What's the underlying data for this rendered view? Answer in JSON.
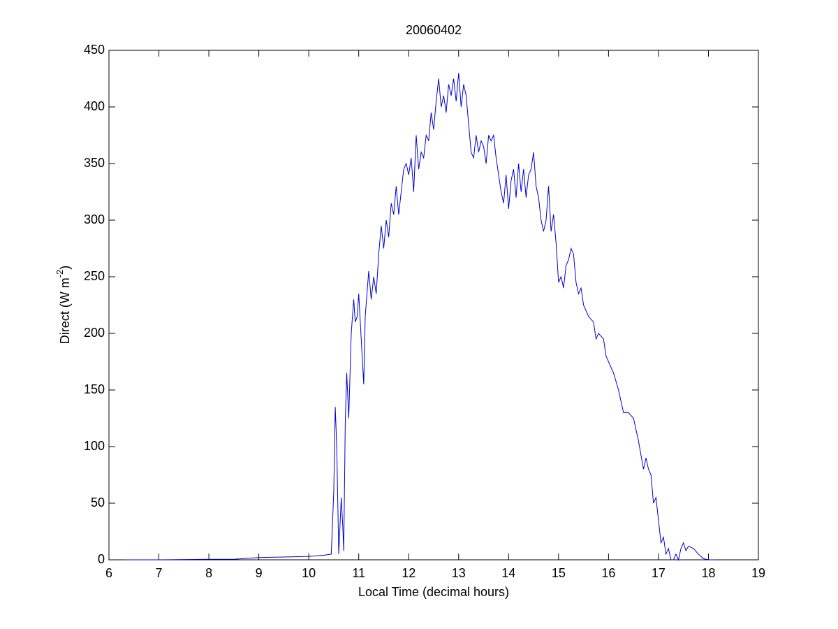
{
  "chart_data": {
    "type": "line",
    "title": "20060402",
    "x_label": "Local Time (decimal hours)",
    "y_label_parts": [
      "Direct (W m",
      "-2",
      ")"
    ],
    "xlim": [
      6,
      19
    ],
    "xticks": [
      6,
      7,
      8,
      9,
      10,
      11,
      12,
      13,
      14,
      15,
      16,
      17,
      18,
      19
    ],
    "ylim": [
      0,
      450
    ],
    "yticks": [
      0,
      50,
      100,
      150,
      200,
      250,
      300,
      350,
      400,
      450
    ],
    "series": [
      {
        "color": "#0000cc",
        "x": [
          6.3,
          7,
          8,
          8.5,
          9,
          9.5,
          10,
          10.3,
          10.45,
          10.5,
          10.53,
          10.56,
          10.6,
          10.65,
          10.68,
          10.7,
          10.73,
          10.76,
          10.8,
          10.85,
          10.9,
          10.93,
          10.97,
          11.0,
          11.05,
          11.1,
          11.13,
          11.2,
          11.25,
          11.3,
          11.35,
          11.4,
          11.45,
          11.5,
          11.55,
          11.6,
          11.65,
          11.7,
          11.75,
          11.8,
          11.85,
          11.9,
          11.95,
          12.0,
          12.05,
          12.1,
          12.15,
          12.2,
          12.25,
          12.3,
          12.35,
          12.4,
          12.45,
          12.5,
          12.55,
          12.6,
          12.65,
          12.7,
          12.75,
          12.8,
          12.85,
          12.9,
          12.95,
          13.0,
          13.05,
          13.1,
          13.15,
          13.2,
          13.25,
          13.3,
          13.35,
          13.4,
          13.45,
          13.5,
          13.55,
          13.6,
          13.65,
          13.7,
          13.75,
          13.8,
          13.85,
          13.9,
          13.95,
          14.0,
          14.05,
          14.1,
          14.15,
          14.2,
          14.25,
          14.3,
          14.35,
          14.4,
          14.45,
          14.5,
          14.55,
          14.6,
          14.65,
          14.7,
          14.75,
          14.8,
          14.85,
          14.9,
          14.95,
          15.0,
          15.05,
          15.1,
          15.15,
          15.2,
          15.25,
          15.3,
          15.35,
          15.4,
          15.45,
          15.5,
          15.6,
          15.7,
          15.75,
          15.8,
          15.9,
          15.95,
          16.0,
          16.1,
          16.2,
          16.3,
          16.4,
          16.5,
          16.6,
          16.7,
          16.75,
          16.8,
          16.85,
          16.9,
          16.95,
          17.0,
          17.05,
          17.1,
          17.15,
          17.2,
          17.25,
          17.3,
          17.35,
          17.4,
          17.45,
          17.5,
          17.55,
          17.6,
          17.7,
          17.8,
          17.9,
          18.0,
          18.15
        ],
        "values": [
          0,
          0,
          0.5,
          0.5,
          2,
          2.5,
          3,
          4,
          5,
          60,
          135,
          100,
          5,
          55,
          30,
          8,
          120,
          165,
          125,
          200,
          230,
          210,
          215,
          235,
          195,
          155,
          215,
          255,
          230,
          250,
          235,
          270,
          295,
          275,
          300,
          285,
          315,
          305,
          330,
          305,
          325,
          345,
          350,
          340,
          355,
          325,
          375,
          345,
          360,
          355,
          375,
          370,
          395,
          380,
          405,
          425,
          400,
          410,
          395,
          420,
          410,
          425,
          405,
          430,
          400,
          420,
          410,
          385,
          360,
          355,
          375,
          360,
          370,
          365,
          350,
          375,
          370,
          375,
          355,
          340,
          325,
          315,
          340,
          310,
          335,
          345,
          320,
          350,
          325,
          345,
          320,
          340,
          345,
          360,
          330,
          320,
          300,
          290,
          300,
          330,
          290,
          305,
          280,
          245,
          250,
          240,
          260,
          265,
          275,
          270,
          245,
          235,
          240,
          225,
          215,
          210,
          195,
          200,
          195,
          180,
          175,
          165,
          150,
          130,
          130,
          125,
          105,
          80,
          90,
          80,
          75,
          50,
          55,
          35,
          15,
          20,
          5,
          10,
          0,
          0,
          5,
          0,
          10,
          15,
          8,
          12,
          10,
          5,
          1,
          0,
          0
        ]
      }
    ]
  }
}
